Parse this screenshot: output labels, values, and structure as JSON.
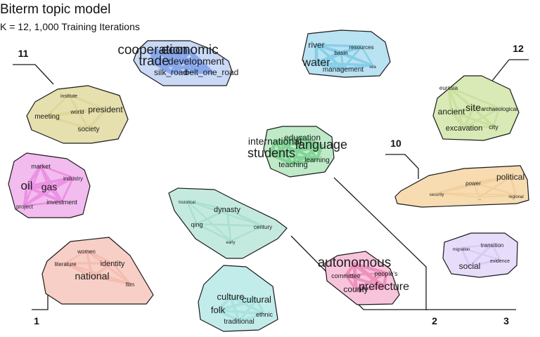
{
  "chart_data": {
    "type": "scatter",
    "title": "Biterm topic model",
    "subtitle": "K = 12, 1,000 Training Iterations",
    "xlabel": "",
    "ylabel": "",
    "grid": false,
    "dendrogram_labels": [
      "1",
      "2",
      "3",
      "10",
      "11",
      "12"
    ],
    "topics": [
      {
        "id": 1,
        "color": "#f8cfc6",
        "stroke": "#f0a89a",
        "words": [
          {
            "w": "national",
            "s": 14
          },
          {
            "w": "identity",
            "s": 11
          },
          {
            "w": "women",
            "s": 8
          },
          {
            "w": "literature",
            "s": 8
          },
          {
            "w": "film",
            "s": 8
          }
        ]
      },
      {
        "id": 2,
        "color": "#f8c4dc",
        "stroke": "#e25598",
        "words": [
          {
            "w": "autonomous",
            "s": 19
          },
          {
            "w": "prefecture",
            "s": 16
          },
          {
            "w": "county",
            "s": 12
          },
          {
            "w": "committee",
            "s": 9
          },
          {
            "w": "people's",
            "s": 9
          }
        ]
      },
      {
        "id": 3,
        "color": "#c2ecea",
        "stroke": "#8fd6d2",
        "words": [
          {
            "w": "culture",
            "s": 13
          },
          {
            "w": "cultural",
            "s": 13
          },
          {
            "w": "folk",
            "s": 13
          },
          {
            "w": "traditional",
            "s": 10
          },
          {
            "w": "ethnic",
            "s": 9
          }
        ]
      },
      {
        "id": 4,
        "color": "#f2bcef",
        "stroke": "#e55fd6",
        "words": [
          {
            "w": "oil",
            "s": 17
          },
          {
            "w": "gas",
            "s": 14
          },
          {
            "w": "market",
            "s": 9
          },
          {
            "w": "industry",
            "s": 8
          },
          {
            "w": "investment",
            "s": 9
          },
          {
            "w": "project",
            "s": 8
          }
        ]
      },
      {
        "id": 5,
        "color": "#e6dfae",
        "stroke": "#d8ce86",
        "words": [
          {
            "w": "president",
            "s": 12
          },
          {
            "w": "meeting",
            "s": 10
          },
          {
            "w": "society",
            "s": 10
          },
          {
            "w": "world",
            "s": 8
          },
          {
            "w": "institute",
            "s": 7
          }
        ]
      },
      {
        "id": 6,
        "color": "#c4eadf",
        "stroke": "#8fd6bf",
        "words": [
          {
            "w": "dynasty",
            "s": 11
          },
          {
            "w": "qing",
            "s": 9
          },
          {
            "w": "century",
            "s": 8
          },
          {
            "w": "historical",
            "s": 6
          },
          {
            "w": "early",
            "s": 6
          }
        ]
      },
      {
        "id": 7,
        "color": "#c9d9f6",
        "stroke": "#3b6fe0",
        "words": [
          {
            "w": "cooperation",
            "s": 19
          },
          {
            "w": "economic",
            "s": 19
          },
          {
            "w": "trade",
            "s": 19
          },
          {
            "w": "development",
            "s": 14
          },
          {
            "w": "silk_road",
            "s": 12
          },
          {
            "w": "belt_one_road",
            "s": 12
          }
        ]
      },
      {
        "id": 8,
        "color": "#b9e2f2",
        "stroke": "#4cb6dc",
        "words": [
          {
            "w": "water",
            "s": 16
          },
          {
            "w": "river",
            "s": 12
          },
          {
            "w": "management",
            "s": 10
          },
          {
            "w": "basin",
            "s": 8
          },
          {
            "w": "resources",
            "s": 8
          },
          {
            "w": "sea",
            "s": 6
          }
        ]
      },
      {
        "id": 9,
        "color": "#bfeac8",
        "stroke": "#3bbd5e",
        "words": [
          {
            "w": "language",
            "s": 18
          },
          {
            "w": "students",
            "s": 18
          },
          {
            "w": "international",
            "s": 14
          },
          {
            "w": "education",
            "s": 12
          },
          {
            "w": "teaching",
            "s": 11
          },
          {
            "w": "learning",
            "s": 10
          }
        ]
      },
      {
        "id": 10,
        "color": "#f7dcb2",
        "stroke": "#ecc384",
        "words": [
          {
            "w": "political",
            "s": 12
          },
          {
            "w": "power",
            "s": 8
          },
          {
            "w": "security",
            "s": 6
          },
          {
            "w": "regional",
            "s": 6
          },
          {
            "w": "...",
            "s": 6
          }
        ]
      },
      {
        "id": 11,
        "color": "#e7dcfa",
        "stroke": "#c9b5f0",
        "words": [
          {
            "w": "social",
            "s": 12
          },
          {
            "w": "transition",
            "s": 8
          },
          {
            "w": "evidence",
            "s": 7
          },
          {
            "w": "migration",
            "s": 6
          }
        ]
      },
      {
        "id": 12,
        "color": "#d9eab6",
        "stroke": "#b8d686",
        "words": [
          {
            "w": "site",
            "s": 14
          },
          {
            "w": "ancient",
            "s": 12
          },
          {
            "w": "excavation",
            "s": 11
          },
          {
            "w": "city",
            "s": 9
          },
          {
            "w": "archaeological",
            "s": 8
          },
          {
            "w": "eurasia",
            "s": 8
          }
        ]
      }
    ]
  }
}
